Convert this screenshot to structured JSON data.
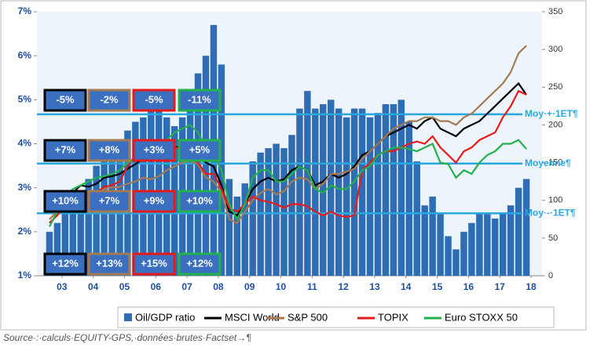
{
  "chart_data": {
    "type": "bar_line",
    "x": [
      2003,
      2003.25,
      2003.5,
      2003.75,
      2004,
      2004.25,
      2004.5,
      2004.75,
      2005,
      2005.25,
      2005.5,
      2005.75,
      2006,
      2006.25,
      2006.5,
      2006.75,
      2007,
      2007.25,
      2007.5,
      2007.75,
      2008,
      2008.25,
      2008.5,
      2008.75,
      2009,
      2009.25,
      2009.5,
      2009.75,
      2010,
      2010.25,
      2010.5,
      2010.75,
      2011,
      2011.25,
      2011.5,
      2011.75,
      2012,
      2012.25,
      2012.5,
      2012.75,
      2013,
      2013.25,
      2013.5,
      2013.75,
      2014,
      2014.25,
      2014.5,
      2014.75,
      2015,
      2015.25,
      2015.5,
      2015.75,
      2016,
      2016.25,
      2016.5,
      2016.75,
      2017,
      2017.25,
      2017.5,
      2017.75,
      2018,
      2018.25
    ],
    "bars": {
      "name": "Oil/GDP ratio",
      "color": "#2e6db4",
      "values": [
        2.0,
        2.2,
        2.4,
        2.6,
        2.8,
        3.2,
        3.5,
        3.6,
        3.7,
        4.0,
        4.3,
        4.5,
        4.6,
        4.9,
        5.0,
        4.6,
        4.4,
        4.6,
        5.0,
        5.6,
        6.0,
        6.7,
        5.8,
        3.2,
        2.8,
        3.1,
        3.6,
        3.8,
        3.9,
        4.0,
        3.9,
        4.2,
        4.8,
        5.2,
        4.8,
        4.9,
        5.0,
        4.8,
        4.6,
        4.8,
        4.8,
        4.6,
        4.7,
        4.9,
        4.9,
        5.0,
        4.5,
        3.6,
        2.6,
        2.8,
        2.4,
        1.9,
        1.6,
        2.0,
        2.2,
        2.4,
        2.4,
        2.3,
        2.4,
        2.6,
        3.0,
        3.2
      ]
    },
    "series": [
      {
        "name": "MSCI World",
        "color": "#000000",
        "axis": "y2",
        "values": [
          85,
          95,
          100,
          110,
          120,
          118,
          122,
          130,
          132,
          135,
          142,
          148,
          155,
          152,
          160,
          165,
          170,
          172,
          175,
          168,
          150,
          145,
          120,
          85,
          80,
          95,
          115,
          125,
          130,
          125,
          128,
          140,
          145,
          140,
          120,
          125,
          135,
          130,
          135,
          145,
          160,
          165,
          175,
          185,
          190,
          195,
          200,
          195,
          205,
          210,
          195,
          190,
          185,
          195,
          200,
          205,
          215,
          225,
          235,
          245,
          255,
          240
        ]
      },
      {
        "name": "S&P 500",
        "color": "#a47a55",
        "axis": "y2",
        "values": [
          75,
          85,
          90,
          100,
          110,
          108,
          110,
          115,
          117,
          118,
          122,
          125,
          130,
          128,
          132,
          140,
          145,
          150,
          152,
          148,
          130,
          125,
          110,
          75,
          70,
          85,
          100,
          110,
          115,
          108,
          112,
          125,
          130,
          128,
          115,
          122,
          135,
          135,
          138,
          142,
          155,
          165,
          175,
          185,
          195,
          200,
          205,
          205,
          210,
          210,
          205,
          205,
          200,
          210,
          215,
          225,
          235,
          245,
          255,
          270,
          295,
          305
        ]
      },
      {
        "name": "TOPIX",
        "color": "#e51b1b",
        "axis": "y2",
        "values": [
          70,
          80,
          95,
          105,
          110,
          108,
          110,
          118,
          120,
          125,
          145,
          160,
          165,
          160,
          160,
          163,
          170,
          168,
          165,
          150,
          135,
          135,
          115,
          90,
          85,
          95,
          105,
          100,
          98,
          95,
          90,
          95,
          95,
          92,
          85,
          80,
          85,
          80,
          78,
          80,
          140,
          150,
          160,
          165,
          165,
          170,
          175,
          178,
          175,
          185,
          170,
          160,
          150,
          165,
          170,
          180,
          185,
          190,
          210,
          225,
          245,
          240
        ]
      },
      {
        "name": "Euro STOXX 50",
        "color": "#22b14c",
        "axis": "y2",
        "values": [
          65,
          85,
          105,
          115,
          120,
          125,
          130,
          132,
          135,
          140,
          150,
          155,
          165,
          165,
          170,
          180,
          190,
          195,
          200,
          190,
          170,
          160,
          140,
          95,
          75,
          95,
          130,
          140,
          140,
          125,
          125,
          135,
          145,
          140,
          115,
          110,
          120,
          115,
          115,
          125,
          140,
          145,
          160,
          165,
          170,
          170,
          168,
          165,
          170,
          175,
          150,
          148,
          130,
          140,
          135,
          150,
          160,
          165,
          175,
          175,
          180,
          168
        ]
      }
    ],
    "ylim": [
      1,
      7
    ],
    "yticks": [
      {
        "value": 1,
        "label": "1%"
      },
      {
        "value": 2,
        "label": "2%"
      },
      {
        "value": 3,
        "label": "3%"
      },
      {
        "value": 4,
        "label": "4%"
      },
      {
        "value": 5,
        "label": "5%"
      },
      {
        "value": 6,
        "label": "6%"
      },
      {
        "value": 7,
        "label": "7%"
      }
    ],
    "y2lim": [
      0,
      350
    ],
    "y2ticks": [
      0,
      50,
      100,
      150,
      200,
      250,
      300,
      350
    ],
    "xlim": [
      2002.6,
      2018.75
    ],
    "xticks": [
      {
        "value": 2003.4,
        "label": "03"
      },
      {
        "value": 2004.4,
        "label": "04"
      },
      {
        "value": 2005.4,
        "label": "05"
      },
      {
        "value": 2006.4,
        "label": "06"
      },
      {
        "value": 2007.4,
        "label": "07"
      },
      {
        "value": 2008.4,
        "label": "08"
      },
      {
        "value": 2009.4,
        "label": "09"
      },
      {
        "value": 2010.4,
        "label": "10"
      },
      {
        "value": 2011.4,
        "label": "11"
      },
      {
        "value": 2012.4,
        "label": "12"
      },
      {
        "value": 2013.4,
        "label": "13"
      },
      {
        "value": 2014.4,
        "label": "14"
      },
      {
        "value": 2015.4,
        "label": "15"
      },
      {
        "value": 2016.4,
        "label": "16"
      },
      {
        "value": 2017.4,
        "label": "17"
      },
      {
        "value": 2018.4,
        "label": "18"
      }
    ],
    "reference_lines": [
      {
        "label": "Moy·+·1ET¶",
        "value": 4.67
      },
      {
        "label": "Moyenne¶",
        "value": 3.55
      },
      {
        "label": "Moy·-·1ET¶",
        "value": 2.42
      }
    ],
    "reference_color": "#29a8e0",
    "return_boxes": {
      "fill": "#3b6fc0",
      "border_colors": [
        "#000000",
        "#a47a55",
        "#e51b1b",
        "#22b14c"
      ],
      "rows": [
        [
          "-5%",
          "-2%",
          "-5%",
          "-11%"
        ],
        [
          "+7%",
          "+8%",
          "+3%",
          "+5%"
        ],
        [
          "+10%",
          "+7%",
          "+9%",
          "+10%"
        ],
        [
          "+12%",
          "+13%",
          "+15%",
          "+12%"
        ]
      ]
    },
    "source": "Source·:·calculs·EQUITY-GPS,·données·brutes·Factset→¶"
  }
}
